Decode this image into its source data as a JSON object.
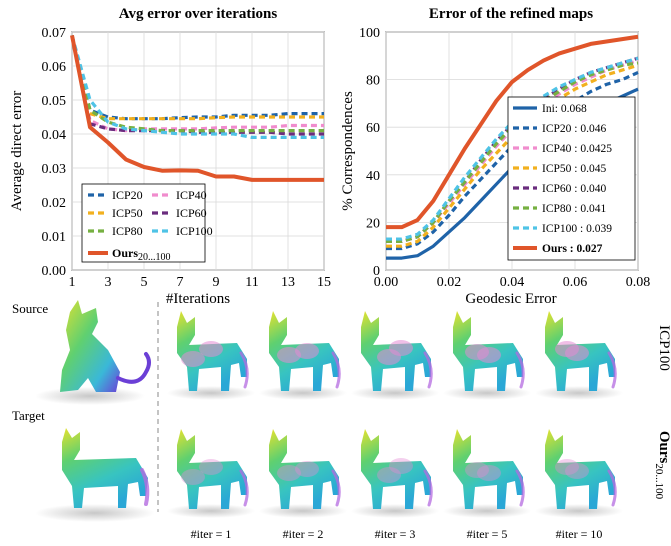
{
  "chart_data": [
    {
      "type": "line",
      "title": "Avg error over iterations",
      "xlabel": "#Iterations",
      "ylabel": "Average direct error",
      "xlim": [
        1,
        15
      ],
      "ylim": [
        0,
        0.07
      ],
      "xticks": [
        1,
        3,
        5,
        7,
        9,
        11,
        13,
        15
      ],
      "yticks": [
        0,
        0.01,
        0.02,
        0.03,
        0.04,
        0.05,
        0.06,
        0.07
      ],
      "grid": true,
      "legend_position": "bottom-left",
      "x": [
        1,
        2,
        3,
        4,
        5,
        6,
        7,
        8,
        9,
        10,
        11,
        12,
        13,
        14,
        15
      ],
      "series": [
        {
          "name": "ICP20",
          "color": "#1f63a8",
          "dash": "dashed",
          "values": [
            0.069,
            0.047,
            0.045,
            0.0445,
            0.0445,
            0.0445,
            0.0448,
            0.045,
            0.045,
            0.0455,
            0.0455,
            0.0455,
            0.046,
            0.046,
            0.046
          ]
        },
        {
          "name": "ICP40",
          "color": "#f08ccd",
          "dash": "dashed",
          "values": [
            0.069,
            0.044,
            0.0415,
            0.041,
            0.0415,
            0.0415,
            0.0415,
            0.0415,
            0.0418,
            0.042,
            0.042,
            0.042,
            0.0425,
            0.0425,
            0.0425
          ]
        },
        {
          "name": "ICP50",
          "color": "#f2b01e",
          "dash": "dashed",
          "values": [
            0.069,
            0.046,
            0.0445,
            0.0445,
            0.0445,
            0.0445,
            0.0445,
            0.0445,
            0.0448,
            0.045,
            0.045,
            0.045,
            0.045,
            0.045,
            0.045
          ]
        },
        {
          "name": "ICP60",
          "color": "#6a2c7e",
          "dash": "dashed",
          "values": [
            0.069,
            0.043,
            0.0415,
            0.041,
            0.041,
            0.041,
            0.041,
            0.0405,
            0.0405,
            0.0405,
            0.0405,
            0.0405,
            0.04,
            0.04,
            0.04
          ]
        },
        {
          "name": "ICP80",
          "color": "#76b041",
          "dash": "dashed",
          "values": [
            0.069,
            0.047,
            0.0435,
            0.042,
            0.0415,
            0.041,
            0.041,
            0.041,
            0.041,
            0.041,
            0.041,
            0.041,
            0.041,
            0.041,
            0.041
          ]
        },
        {
          "name": "ICP100",
          "color": "#4fc3e6",
          "dash": "dashed",
          "values": [
            0.069,
            0.05,
            0.0435,
            0.0415,
            0.041,
            0.0405,
            0.04,
            0.04,
            0.04,
            0.04,
            0.039,
            0.039,
            0.039,
            0.039,
            0.039
          ]
        },
        {
          "name": "Ours",
          "name_sub": "20...100",
          "color": "#e0552a",
          "dash": "solid",
          "values": [
            0.069,
            0.042,
            0.0375,
            0.0325,
            0.0303,
            0.0292,
            0.0293,
            0.0292,
            0.0275,
            0.0275,
            0.0265,
            0.0265,
            0.0265,
            0.0265,
            0.0265
          ]
        }
      ]
    },
    {
      "type": "line",
      "title": "Error of the refined maps",
      "xlabel": "Geodesic Error",
      "ylabel": "% Correspondences",
      "xlim": [
        0,
        0.08
      ],
      "ylim": [
        0,
        100
      ],
      "xticks": [
        0,
        0.02,
        0.04,
        0.06,
        0.08
      ],
      "yticks": [
        0,
        20,
        40,
        60,
        80,
        100
      ],
      "grid": true,
      "legend_position": "bottom-right",
      "x": [
        0,
        0.005,
        0.01,
        0.015,
        0.02,
        0.025,
        0.03,
        0.035,
        0.04,
        0.045,
        0.05,
        0.055,
        0.06,
        0.065,
        0.07,
        0.075,
        0.08
      ],
      "series": [
        {
          "name": "Ini",
          "score": "0.068",
          "color": "#1f63a8",
          "dash": "solid",
          "values": [
            5,
            5,
            6,
            10,
            16,
            22,
            29,
            36,
            43,
            49,
            54,
            59,
            63,
            67,
            70,
            73,
            76
          ]
        },
        {
          "name": "ICP20",
          "score": "0.046",
          "color": "#1f63a8",
          "dash": "dashed",
          "values": [
            9,
            9,
            11,
            16,
            23,
            31,
            38,
            45,
            52,
            58,
            63,
            67,
            71,
            75,
            78,
            80,
            83
          ]
        },
        {
          "name": "ICP40",
          "score": "0.0425",
          "color": "#f08ccd",
          "dash": "dashed",
          "values": [
            12,
            12,
            14,
            20,
            28,
            36,
            44,
            52,
            59,
            65,
            70,
            74,
            78,
            81,
            84,
            86,
            88
          ]
        },
        {
          "name": "ICP50",
          "score": "0.045",
          "color": "#f2b01e",
          "dash": "dashed",
          "values": [
            10,
            10,
            12,
            18,
            26,
            34,
            42,
            49,
            56,
            62,
            67,
            72,
            76,
            79,
            82,
            84,
            86
          ]
        },
        {
          "name": "ICP60",
          "score": "0.040",
          "color": "#6a2c7e",
          "dash": "dashed",
          "values": [
            12,
            12,
            14,
            20,
            29,
            37,
            46,
            54,
            61,
            67,
            72,
            76,
            80,
            83,
            85,
            87,
            89
          ]
        },
        {
          "name": "ICP80",
          "score": "0.041",
          "color": "#76b041",
          "dash": "dashed",
          "values": [
            12,
            12,
            14,
            20,
            29,
            37,
            45,
            53,
            60,
            66,
            71,
            75,
            79,
            82,
            84,
            86,
            87
          ]
        },
        {
          "name": "ICP100",
          "score": "0.039",
          "color": "#4fc3e6",
          "dash": "dashed",
          "values": [
            13,
            13,
            15,
            21,
            30,
            39,
            47,
            55,
            62,
            68,
            73,
            77,
            80,
            83,
            85,
            87,
            89
          ]
        },
        {
          "name": "Ours",
          "score": "0.027",
          "color": "#e0552a",
          "dash": "solid",
          "values": [
            18,
            18,
            21,
            29,
            40,
            51,
            61,
            71,
            79,
            84,
            88,
            91,
            93,
            95,
            96,
            97,
            98
          ]
        }
      ]
    }
  ],
  "figure": {
    "source_label": "Source",
    "target_label": "Target",
    "row_labels": {
      "top": "ICP100",
      "bottom_main": "Ours",
      "bottom_sub": "20...100"
    },
    "iter_labels": [
      "#iter = 1",
      "#iter = 2",
      "#iter = 3",
      "#iter = 5",
      "#iter = 10"
    ]
  }
}
